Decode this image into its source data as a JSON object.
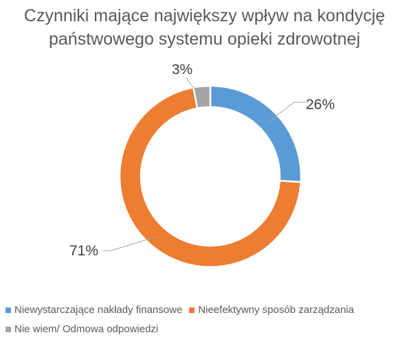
{
  "chart_data": {
    "type": "pie",
    "variant": "donut",
    "title_lines": [
      "Czynniki mające największy wpływ na kondycję",
      "państwowego systemu opieki zdrowotnej"
    ],
    "categories": [
      "Niewystarczające nakłady finansowe",
      "Nieefektywny sposób zarządzania",
      "Nie wiem/ Odmowa odpowiedzi"
    ],
    "values": [
      26,
      71,
      3
    ],
    "data_labels": [
      "26%",
      "71%",
      "3%"
    ],
    "colors": [
      "#5B9BD5",
      "#ED7D31",
      "#A5A5A5"
    ],
    "legend_position": "bottom"
  }
}
